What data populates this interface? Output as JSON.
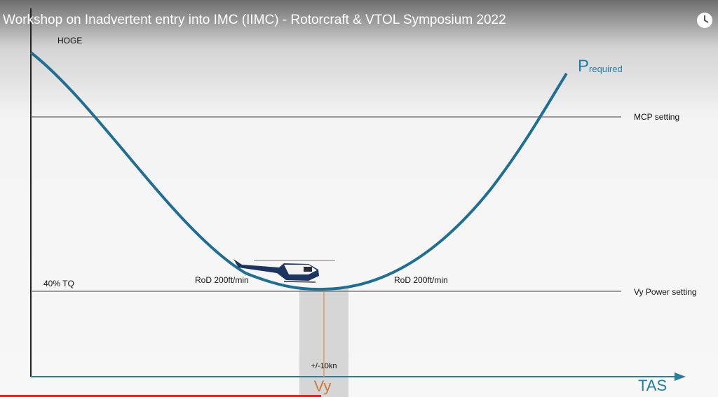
{
  "video": {
    "title": "Workshop on Inadvertent entry into IMC (IIMC) - Rotorcraft & VTOL Symposium 2022"
  },
  "diagram": {
    "curve_label": {
      "main": "P",
      "sub": "required"
    },
    "top_label": "HOGE",
    "mcp_label": "MCP setting",
    "tq_label": "40% TQ",
    "vy_power_label": "Vy Power setting",
    "rod_left": "RoD 200ft/min",
    "rod_right": "RoD 200ft/min",
    "band_label": "+/-10kn",
    "vy_label": "Vy",
    "x_axis_label": "TAS"
  }
}
